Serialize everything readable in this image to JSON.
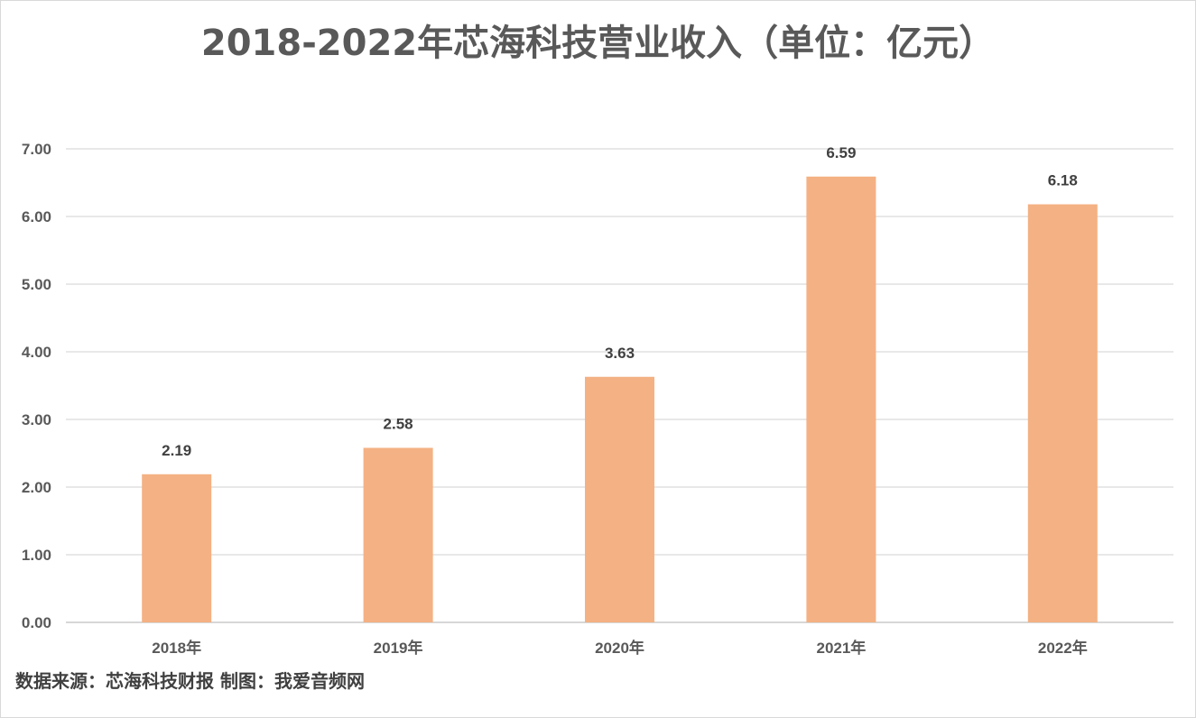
{
  "chart_data": {
    "type": "bar",
    "title": "2018-2022年芯海科技营业收入（单位：亿元）",
    "categories": [
      "2018年",
      "2019年",
      "2020年",
      "2021年",
      "2022年"
    ],
    "values": [
      2.19,
      2.58,
      3.63,
      6.59,
      6.18
    ],
    "data_labels": [
      "2.19",
      "2.58",
      "3.63",
      "6.59",
      "6.18"
    ],
    "ylim": [
      0,
      7
    ],
    "y_ticks": [
      "0.00",
      "1.00",
      "2.00",
      "3.00",
      "4.00",
      "5.00",
      "6.00",
      "7.00"
    ],
    "xlabel": "",
    "ylabel": "",
    "grid": true,
    "bar_color": "#f4b183",
    "grid_color": "#d9d9d9"
  },
  "source_note": "数据来源：芯海科技财报  制图：我爱音频网"
}
